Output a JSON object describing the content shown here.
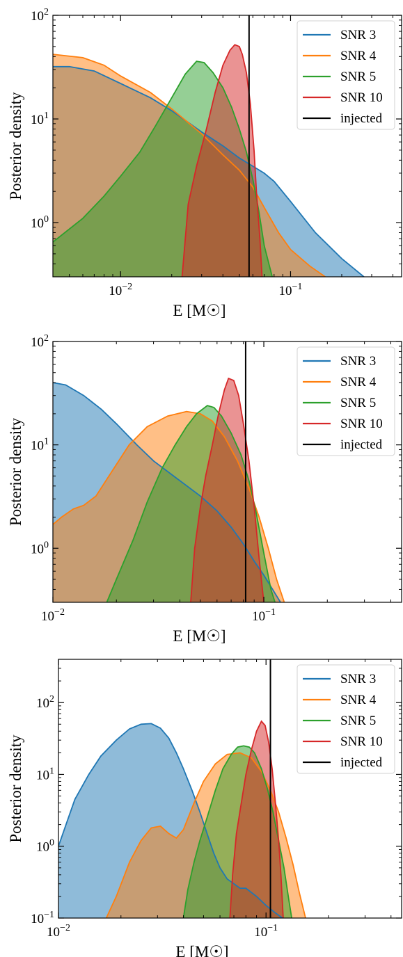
{
  "chart_data": [
    {
      "type": "area",
      "xlabel": "E [M☉]",
      "ylabel": "Posterior density",
      "xscale": "log",
      "yscale": "log",
      "xlim": [
        0.004,
        0.45
      ],
      "ylim": [
        0.3,
        100
      ],
      "x_ticks": [
        {
          "value": 0.01,
          "mantissa": "10",
          "exp": "−2"
        },
        {
          "value": 0.1,
          "mantissa": "10",
          "exp": "−1"
        }
      ],
      "y_ticks": [
        {
          "value": 1,
          "mantissa": "10",
          "exp": "0"
        },
        {
          "value": 10,
          "mantissa": "10",
          "exp": "1"
        },
        {
          "value": 100,
          "mantissa": "10",
          "exp": "2"
        }
      ],
      "injected": 0.057,
      "legend_position": "upper right",
      "legend": [
        "SNR 3",
        "SNR 4",
        "SNR 5",
        "SNR 10",
        "injected"
      ],
      "series": [
        {
          "name": "SNR 3",
          "color": "#1f77b4",
          "points": [
            [
              0.004,
              32
            ],
            [
              0.005,
              32
            ],
            [
              0.007,
              29
            ],
            [
              0.01,
              22
            ],
            [
              0.015,
              16
            ],
            [
              0.02,
              12
            ],
            [
              0.03,
              7.5
            ],
            [
              0.04,
              5.5
            ],
            [
              0.05,
              4.2
            ],
            [
              0.06,
              3.5
            ],
            [
              0.07,
              3.0
            ],
            [
              0.08,
              2.5
            ],
            [
              0.1,
              1.6
            ],
            [
              0.14,
              0.8
            ],
            [
              0.2,
              0.45
            ],
            [
              0.27,
              0.3
            ]
          ]
        },
        {
          "name": "SNR 4",
          "color": "#ff7f0e",
          "points": [
            [
              0.004,
              42
            ],
            [
              0.006,
              39
            ],
            [
              0.008,
              33
            ],
            [
              0.01,
              26
            ],
            [
              0.015,
              18
            ],
            [
              0.02,
              12.5
            ],
            [
              0.03,
              7.2
            ],
            [
              0.04,
              4.5
            ],
            [
              0.05,
              3.2
            ],
            [
              0.06,
              2.2
            ],
            [
              0.07,
              1.4
            ],
            [
              0.085,
              0.8
            ],
            [
              0.1,
              0.55
            ],
            [
              0.13,
              0.38
            ],
            [
              0.16,
              0.3
            ]
          ]
        },
        {
          "name": "SNR 5",
          "color": "#2ca02c",
          "points": [
            [
              0.004,
              0.65
            ],
            [
              0.006,
              1.1
            ],
            [
              0.008,
              1.8
            ],
            [
              0.01,
              2.8
            ],
            [
              0.013,
              4.8
            ],
            [
              0.016,
              8.5
            ],
            [
              0.02,
              16
            ],
            [
              0.024,
              27
            ],
            [
              0.028,
              36
            ],
            [
              0.031,
              35
            ],
            [
              0.035,
              28
            ],
            [
              0.04,
              20
            ],
            [
              0.045,
              13
            ],
            [
              0.05,
              8
            ],
            [
              0.055,
              4.8
            ],
            [
              0.06,
              2.6
            ],
            [
              0.065,
              1.3
            ],
            [
              0.07,
              0.6
            ],
            [
              0.078,
              0.3
            ]
          ]
        },
        {
          "name": "SNR 10",
          "color": "#d62728",
          "points": [
            [
              0.023,
              0.3
            ],
            [
              0.025,
              1.5
            ],
            [
              0.028,
              3.5
            ],
            [
              0.032,
              8
            ],
            [
              0.036,
              18
            ],
            [
              0.04,
              33
            ],
            [
              0.044,
              46
            ],
            [
              0.047,
              52
            ],
            [
              0.05,
              50
            ],
            [
              0.052,
              42
            ],
            [
              0.055,
              28
            ],
            [
              0.058,
              14
            ],
            [
              0.061,
              5
            ],
            [
              0.063,
              2
            ],
            [
              0.066,
              0.7
            ],
            [
              0.068,
              0.3
            ]
          ]
        }
      ]
    },
    {
      "type": "area",
      "xlabel": "E [M☉]",
      "ylabel": "Posterior density",
      "xscale": "log",
      "yscale": "log",
      "xlim": [
        0.01,
        0.45
      ],
      "ylim": [
        0.3,
        100
      ],
      "x_ticks": [
        {
          "value": 0.01,
          "mantissa": "10",
          "exp": "−2"
        },
        {
          "value": 0.1,
          "mantissa": "10",
          "exp": "−1"
        }
      ],
      "y_ticks": [
        {
          "value": 1,
          "mantissa": "10",
          "exp": "0"
        },
        {
          "value": 10,
          "mantissa": "10",
          "exp": "1"
        },
        {
          "value": 100,
          "mantissa": "10",
          "exp": "2"
        }
      ],
      "injected": 0.082,
      "legend_position": "upper right",
      "legend": [
        "SNR 3",
        "SNR 4",
        "SNR 5",
        "SNR 10",
        "injected"
      ],
      "series": [
        {
          "name": "SNR 3",
          "color": "#1f77b4",
          "points": [
            [
              0.01,
              40
            ],
            [
              0.0115,
              38
            ],
            [
              0.014,
              30
            ],
            [
              0.017,
              22
            ],
            [
              0.02,
              16
            ],
            [
              0.025,
              10
            ],
            [
              0.03,
              7
            ],
            [
              0.04,
              4.5
            ],
            [
              0.05,
              3.2
            ],
            [
              0.06,
              2.3
            ],
            [
              0.07,
              1.6
            ],
            [
              0.08,
              1.1
            ],
            [
              0.09,
              0.75
            ],
            [
              0.1,
              0.55
            ],
            [
              0.11,
              0.4
            ],
            [
              0.12,
              0.3
            ]
          ]
        },
        {
          "name": "SNR 4",
          "color": "#ff7f0e",
          "points": [
            [
              0.01,
              1.7
            ],
            [
              0.011,
              2.0
            ],
            [
              0.0125,
              2.4
            ],
            [
              0.014,
              2.6
            ],
            [
              0.016,
              3.2
            ],
            [
              0.019,
              5.5
            ],
            [
              0.023,
              10
            ],
            [
              0.028,
              15
            ],
            [
              0.035,
              19
            ],
            [
              0.043,
              21
            ],
            [
              0.05,
              20
            ],
            [
              0.057,
              17
            ],
            [
              0.065,
              12
            ],
            [
              0.075,
              7
            ],
            [
              0.085,
              3.8
            ],
            [
              0.095,
              2.0
            ],
            [
              0.105,
              1.0
            ],
            [
              0.115,
              0.5
            ],
            [
              0.125,
              0.3
            ]
          ]
        },
        {
          "name": "SNR 5",
          "color": "#2ca02c",
          "points": [
            [
              0.018,
              0.3
            ],
            [
              0.02,
              0.5
            ],
            [
              0.024,
              1.2
            ],
            [
              0.028,
              2.8
            ],
            [
              0.033,
              6
            ],
            [
              0.038,
              10
            ],
            [
              0.043,
              15
            ],
            [
              0.048,
              20
            ],
            [
              0.054,
              24
            ],
            [
              0.058,
              23
            ],
            [
              0.063,
              19
            ],
            [
              0.07,
              13
            ],
            [
              0.078,
              8
            ],
            [
              0.085,
              4.5
            ],
            [
              0.092,
              2.2
            ],
            [
              0.1,
              0.9
            ],
            [
              0.108,
              0.4
            ],
            [
              0.113,
              0.3
            ]
          ]
        },
        {
          "name": "SNR 10",
          "color": "#d62728",
          "points": [
            [
              0.045,
              0.3
            ],
            [
              0.047,
              1.0
            ],
            [
              0.05,
              2.5
            ],
            [
              0.053,
              5
            ],
            [
              0.057,
              10
            ],
            [
              0.061,
              20
            ],
            [
              0.065,
              34
            ],
            [
              0.068,
              44
            ],
            [
              0.072,
              42
            ],
            [
              0.076,
              30
            ],
            [
              0.08,
              16
            ],
            [
              0.085,
              7
            ],
            [
              0.09,
              2.5
            ],
            [
              0.095,
              0.8
            ],
            [
              0.1,
              0.3
            ]
          ]
        }
      ]
    },
    {
      "type": "area",
      "xlabel": "E [M☉]",
      "ylabel": "Posterior density",
      "xscale": "log",
      "yscale": "log",
      "xlim": [
        0.01,
        0.45
      ],
      "ylim": [
        0.1,
        400
      ],
      "x_ticks": [
        {
          "value": 0.01,
          "mantissa": "10",
          "exp": "−2"
        },
        {
          "value": 0.1,
          "mantissa": "10",
          "exp": "−1"
        }
      ],
      "y_ticks": [
        {
          "value": 0.1,
          "mantissa": "10",
          "exp": "−1"
        },
        {
          "value": 1,
          "mantissa": "10",
          "exp": "0"
        },
        {
          "value": 10,
          "mantissa": "10",
          "exp": "1"
        },
        {
          "value": 100,
          "mantissa": "10",
          "exp": "2"
        }
      ],
      "injected": 0.105,
      "legend_position": "upper right",
      "legend": [
        "SNR 3",
        "SNR 4",
        "SNR 5",
        "SNR 10",
        "injected"
      ],
      "series": [
        {
          "name": "SNR 3",
          "color": "#1f77b4",
          "points": [
            [
              0.01,
              1.0
            ],
            [
              0.011,
              2.2
            ],
            [
              0.012,
              4.5
            ],
            [
              0.014,
              10
            ],
            [
              0.016,
              18
            ],
            [
              0.019,
              30
            ],
            [
              0.022,
              43
            ],
            [
              0.025,
              50
            ],
            [
              0.028,
              51
            ],
            [
              0.031,
              44
            ],
            [
              0.034,
              32
            ],
            [
              0.037,
              20
            ],
            [
              0.04,
              12
            ],
            [
              0.044,
              6
            ],
            [
              0.048,
              3
            ],
            [
              0.052,
              1.5
            ],
            [
              0.056,
              0.8
            ],
            [
              0.06,
              0.5
            ],
            [
              0.065,
              0.35
            ],
            [
              0.07,
              0.3
            ],
            [
              0.075,
              0.26
            ],
            [
              0.08,
              0.26
            ],
            [
              0.09,
              0.2
            ],
            [
              0.1,
              0.15
            ],
            [
              0.11,
              0.12
            ],
            [
              0.12,
              0.1
            ]
          ]
        },
        {
          "name": "SNR 4",
          "color": "#ff7f0e",
          "points": [
            [
              0.017,
              0.1
            ],
            [
              0.019,
              0.2
            ],
            [
              0.022,
              0.6
            ],
            [
              0.025,
              1.2
            ],
            [
              0.028,
              1.8
            ],
            [
              0.031,
              1.9
            ],
            [
              0.034,
              1.5
            ],
            [
              0.037,
              1.3
            ],
            [
              0.04,
              1.7
            ],
            [
              0.045,
              4
            ],
            [
              0.05,
              8
            ],
            [
              0.057,
              14
            ],
            [
              0.065,
              19
            ],
            [
              0.075,
              20
            ],
            [
              0.085,
              17
            ],
            [
              0.095,
              11
            ],
            [
              0.105,
              6
            ],
            [
              0.115,
              3
            ],
            [
              0.125,
              1.3
            ],
            [
              0.135,
              0.55
            ],
            [
              0.145,
              0.22
            ],
            [
              0.155,
              0.1
            ]
          ]
        },
        {
          "name": "SNR 5",
          "color": "#2ca02c",
          "points": [
            [
              0.04,
              0.1
            ],
            [
              0.042,
              0.25
            ],
            [
              0.045,
              0.6
            ],
            [
              0.048,
              1.2
            ],
            [
              0.052,
              2.5
            ],
            [
              0.057,
              6
            ],
            [
              0.062,
              12
            ],
            [
              0.068,
              19
            ],
            [
              0.073,
              24
            ],
            [
              0.078,
              25
            ],
            [
              0.083,
              24
            ],
            [
              0.088,
              20
            ],
            [
              0.095,
              12
            ],
            [
              0.102,
              6
            ],
            [
              0.108,
              3
            ],
            [
              0.115,
              1.2
            ],
            [
              0.122,
              0.5
            ],
            [
              0.128,
              0.2
            ],
            [
              0.133,
              0.1
            ]
          ]
        },
        {
          "name": "SNR 10",
          "color": "#d62728",
          "points": [
            [
              0.067,
              0.1
            ],
            [
              0.069,
              0.4
            ],
            [
              0.072,
              1.5
            ],
            [
              0.076,
              4
            ],
            [
              0.08,
              10
            ],
            [
              0.085,
              22
            ],
            [
              0.09,
              40
            ],
            [
              0.095,
              55
            ],
            [
              0.099,
              48
            ],
            [
              0.103,
              28
            ],
            [
              0.107,
              12
            ],
            [
              0.111,
              4
            ],
            [
              0.115,
              1.2
            ],
            [
              0.118,
              0.4
            ],
            [
              0.121,
              0.1
            ]
          ]
        }
      ]
    }
  ]
}
